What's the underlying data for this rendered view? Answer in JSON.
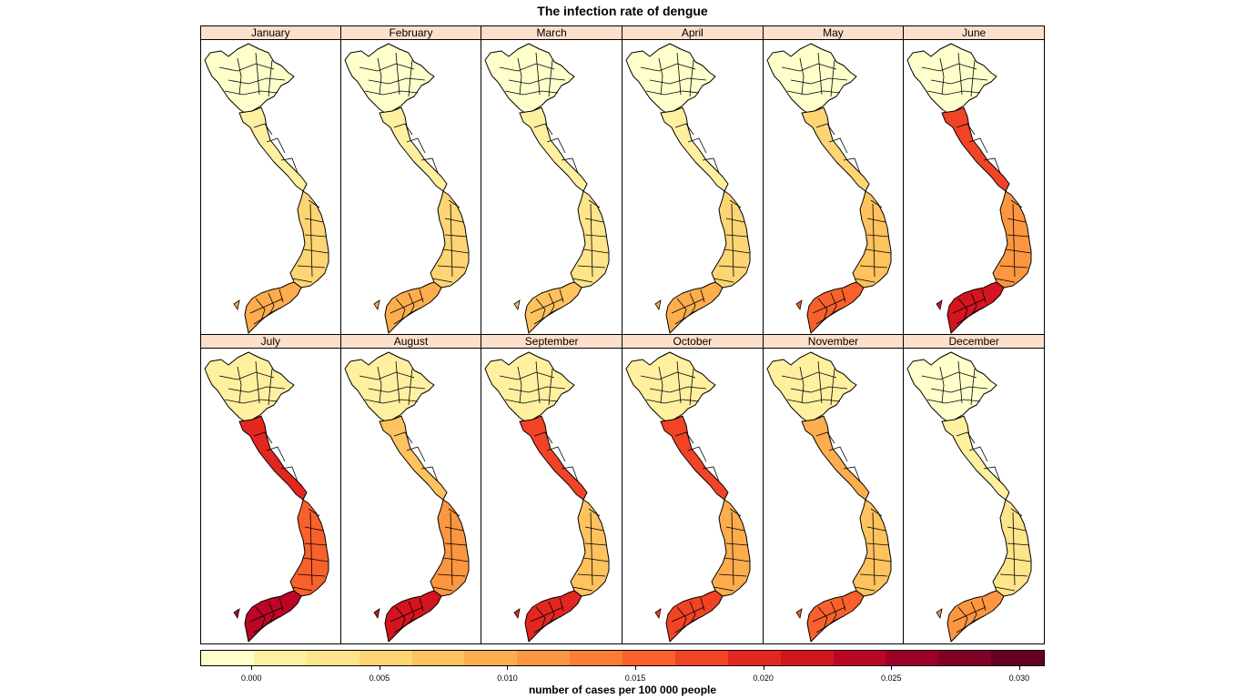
{
  "title": "The infection rate of dengue",
  "legend": {
    "title": "number of cases per 100 000 people",
    "min": -0.002,
    "max": 0.031,
    "tick_labels": [
      "0.000",
      "0.005",
      "0.010",
      "0.015",
      "0.020",
      "0.025",
      "0.030"
    ],
    "tick_values": [
      0.0,
      0.005,
      0.01,
      0.015,
      0.02,
      0.025,
      0.03
    ],
    "colors": [
      "#ffffcc",
      "#fff0a0",
      "#fee48a",
      "#fed574",
      "#fec25e",
      "#fdad4d",
      "#fd9640",
      "#fc7d35",
      "#f8612b",
      "#f14326",
      "#e3261f",
      "#d4141e",
      "#bc0625",
      "#9d0026",
      "#800026",
      "#650021"
    ]
  },
  "months": [
    {
      "name": "January",
      "north": 0.0,
      "central": 0.001,
      "south_central": 0.005,
      "mekong": 0.009
    },
    {
      "name": "February",
      "north": 0.0,
      "central": 0.001,
      "south_central": 0.005,
      "mekong": 0.0085
    },
    {
      "name": "March",
      "north": 0.0,
      "central": 0.001,
      "south_central": 0.004,
      "mekong": 0.008
    },
    {
      "name": "April",
      "north": 0.0,
      "central": 0.001,
      "south_central": 0.005,
      "mekong": 0.009
    },
    {
      "name": "May",
      "north": 0.0,
      "central": 0.006,
      "south_central": 0.008,
      "mekong": 0.015
    },
    {
      "name": "June",
      "north": 0.0,
      "central": 0.018,
      "south_central": 0.012,
      "mekong": 0.022
    },
    {
      "name": "July",
      "north": 0.0005,
      "central": 0.02,
      "south_central": 0.015,
      "mekong": 0.023
    },
    {
      "name": "August",
      "north": 0.0005,
      "central": 0.008,
      "south_central": 0.012,
      "mekong": 0.022
    },
    {
      "name": "September",
      "north": 0.001,
      "central": 0.017,
      "south_central": 0.008,
      "mekong": 0.02
    },
    {
      "name": "October",
      "north": 0.002,
      "central": 0.018,
      "south_central": 0.01,
      "mekong": 0.018
    },
    {
      "name": "November",
      "north": 0.001,
      "central": 0.01,
      "south_central": 0.008,
      "mekong": 0.015
    },
    {
      "name": "December",
      "north": 0.0,
      "central": 0.001,
      "south_central": 0.004,
      "mekong": 0.012
    }
  ]
}
